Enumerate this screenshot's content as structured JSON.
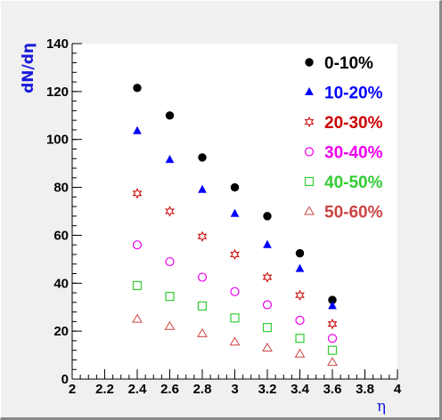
{
  "chart_data": {
    "type": "scatter",
    "title": "",
    "xlabel": "η",
    "ylabel": "dN/dη",
    "xlim": [
      2,
      4
    ],
    "ylim": [
      0,
      140
    ],
    "grid": false,
    "legend_position": "top-right",
    "x_ticks": [
      "2",
      "2.2",
      "2.4",
      "2.6",
      "2.8",
      "3",
      "3.2",
      "3.4",
      "3.6",
      "3.8",
      "4"
    ],
    "y_ticks": [
      "0",
      "20",
      "40",
      "60",
      "80",
      "100",
      "120",
      "140"
    ],
    "x": [
      2.4,
      2.6,
      2.8,
      3.0,
      3.2,
      3.4,
      3.6
    ],
    "series": [
      {
        "name": "0-10%",
        "color": "#000000",
        "marker": "filled-circle",
        "values": [
          121.5,
          110,
          92.5,
          80,
          68,
          52.5,
          33
        ]
      },
      {
        "name": "10-20%",
        "color": "#0000ff",
        "marker": "filled-triangle",
        "values": [
          103.5,
          91.5,
          79,
          69,
          56,
          46,
          30.5
        ]
      },
      {
        "name": "20-30%",
        "color": "#cc0000",
        "marker": "open-star",
        "values": [
          77.5,
          70,
          59.5,
          52,
          42.5,
          35,
          23
        ]
      },
      {
        "name": "30-40%",
        "color": "#ee00ee",
        "marker": "open-circle",
        "values": [
          56,
          49,
          42.5,
          36.5,
          31,
          24.5,
          17
        ]
      },
      {
        "name": "40-50%",
        "color": "#33cc33",
        "marker": "open-square",
        "values": [
          39,
          34.5,
          30.5,
          25.5,
          21.5,
          17,
          12
        ]
      },
      {
        "name": "50-60%",
        "color": "#cc4444",
        "marker": "open-triangle",
        "values": [
          25,
          22,
          19,
          15.5,
          13,
          10.5,
          7
        ]
      }
    ]
  }
}
